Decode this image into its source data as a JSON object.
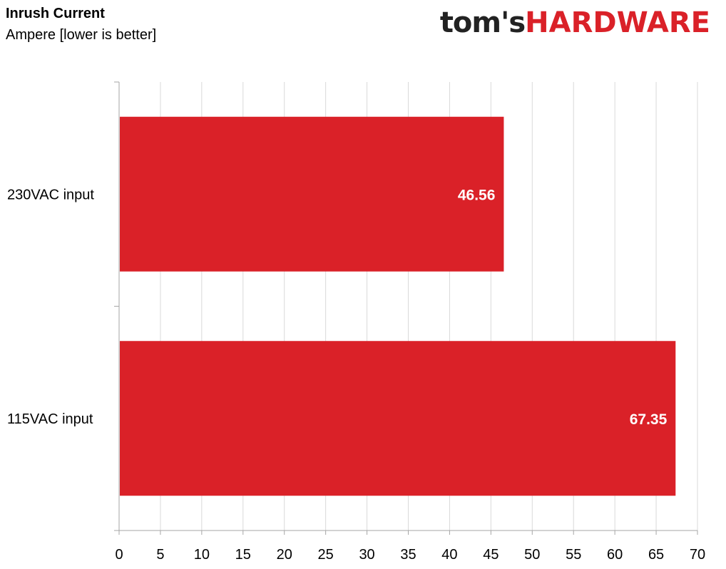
{
  "header": {
    "title": "Inrush Current",
    "subtitle": "Ampere [lower is better]"
  },
  "logo": {
    "part1": "tom's",
    "part2": "HARDWARE"
  },
  "colors": {
    "bar": "#da2128",
    "grid": "#d9d9d9",
    "axis": "#a6a6a6",
    "logo_dark": "#222222",
    "logo_red": "#da2128"
  },
  "chart_data": {
    "type": "bar",
    "orientation": "horizontal",
    "title": "Inrush Current",
    "subtitle": "Ampere [lower is better]",
    "categories": [
      "230VAC input",
      "115VAC input"
    ],
    "values": [
      46.56,
      67.35
    ],
    "data_labels": [
      "46.56",
      "67.35"
    ],
    "xlim": [
      0,
      70
    ],
    "x_ticks": [
      0,
      5,
      10,
      15,
      20,
      25,
      30,
      35,
      40,
      45,
      50,
      55,
      60,
      65,
      70
    ],
    "grid": true,
    "legend": "none"
  }
}
